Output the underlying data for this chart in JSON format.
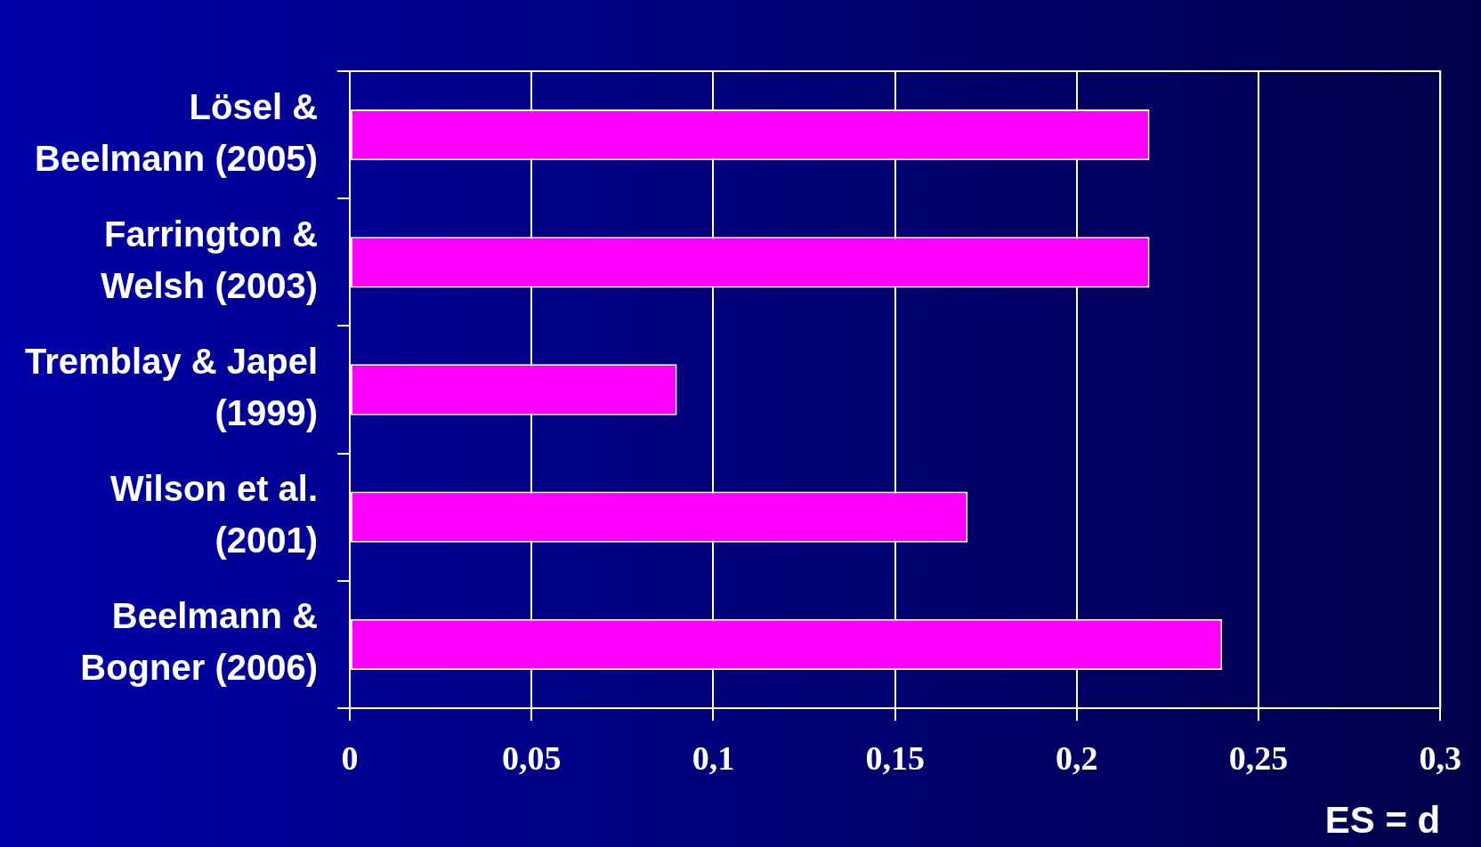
{
  "chart_data": {
    "type": "bar",
    "orientation": "horizontal",
    "xlabel": "ES = d",
    "categories": [
      "Lösel &\nBeelmann (2005)",
      "Farrington &\nWelsh (2003)",
      "Tremblay & Japel\n(1999)",
      "Wilson et al.\n(2001)",
      "Beelmann &\nBogner (2006)"
    ],
    "values": [
      0.22,
      0.22,
      0.09,
      0.17,
      0.24
    ],
    "color": "#ff00ff",
    "xlim": [
      0,
      0.3
    ],
    "xticks": [
      {
        "value": 0,
        "label": "0"
      },
      {
        "value": 0.05,
        "label": "0,05"
      },
      {
        "value": 0.1,
        "label": "0,1"
      },
      {
        "value": 0.15,
        "label": "0,15"
      },
      {
        "value": 0.2,
        "label": "0,2"
      },
      {
        "value": 0.25,
        "label": "0,25"
      },
      {
        "value": 0.3,
        "label": "0,3"
      }
    ],
    "grid": "x",
    "legend": false
  }
}
